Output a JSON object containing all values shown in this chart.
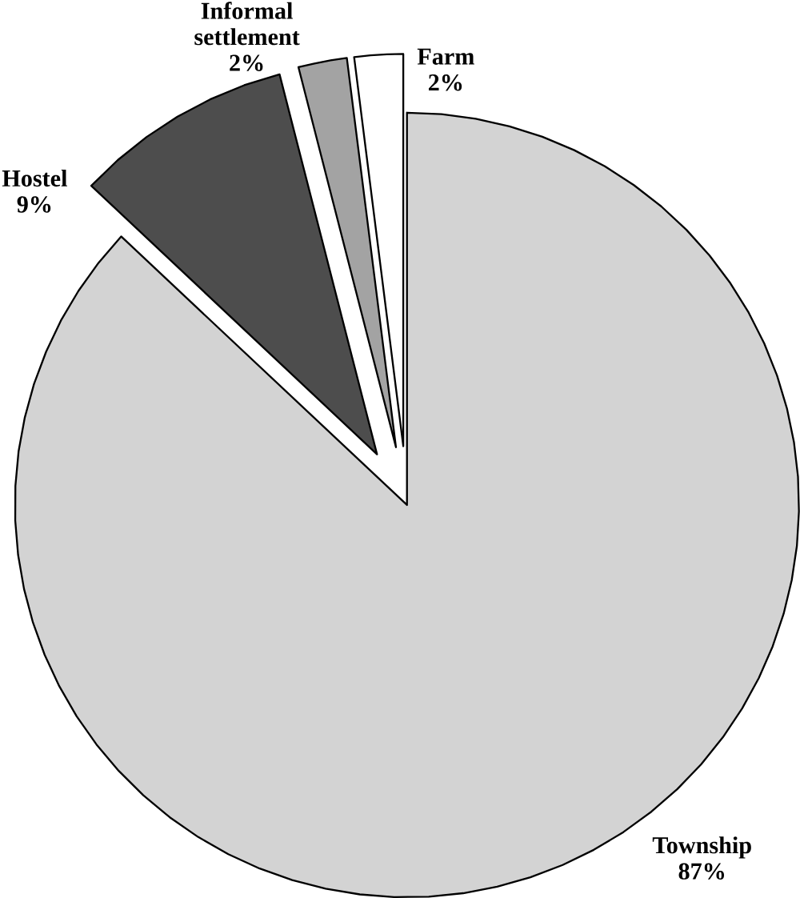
{
  "chart_data": {
    "type": "pie",
    "categories": [
      "Township",
      "Hostel",
      "Informal settlement",
      "Farm"
    ],
    "values": [
      87,
      9,
      2,
      2
    ],
    "colors": [
      "#d3d3d3",
      "#4d4d4d",
      "#a3a3a3",
      "#ffffff"
    ],
    "value_labels": [
      "87%",
      "9%",
      "2%",
      "2%"
    ]
  }
}
